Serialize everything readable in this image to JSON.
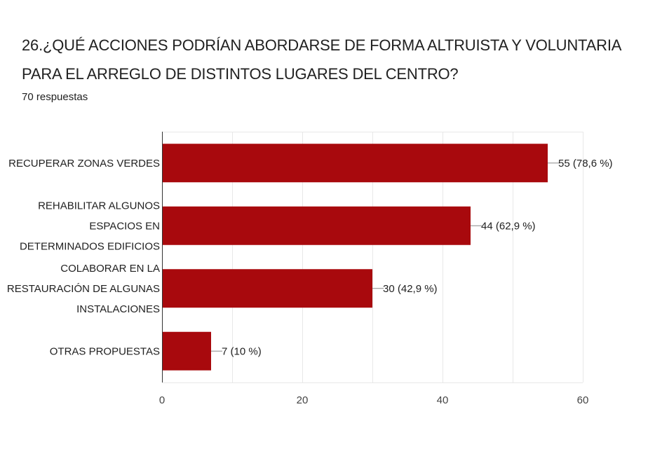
{
  "title": "26.¿QUÉ ACCIONES PODRÍAN ABORDARSE DE FORMA ALTRUISTA Y VOLUNTARIA PARA EL ARREGLO DE DISTINTOS LUGARES DEL CENTRO?",
  "subtitle": "70 respuestas",
  "colors": {
    "bar": "#a8090d",
    "grid": "#e8e8e8",
    "axis": "#333333"
  },
  "chart_data": {
    "type": "bar",
    "orientation": "horizontal",
    "categories": [
      [
        "RECUPERAR ZONAS VERDES"
      ],
      [
        "REHABILITAR ALGUNOS",
        "ESPACIOS EN",
        "DETERMINADOS EDIFICIOS"
      ],
      [
        "COLABORAR EN LA",
        "RESTAURACIÓN DE ALGUNAS",
        "INSTALACIONES"
      ],
      [
        "OTRAS PROPUESTAS"
      ]
    ],
    "values": [
      55,
      44,
      30,
      7
    ],
    "data_labels": [
      "55 (78,6 %)",
      "44 (62,9 %)",
      "30 (42,9 %)",
      "7 (10 %)"
    ],
    "xlim": [
      0,
      60
    ],
    "xticks": [
      0,
      20,
      40,
      60
    ],
    "grid": true
  }
}
